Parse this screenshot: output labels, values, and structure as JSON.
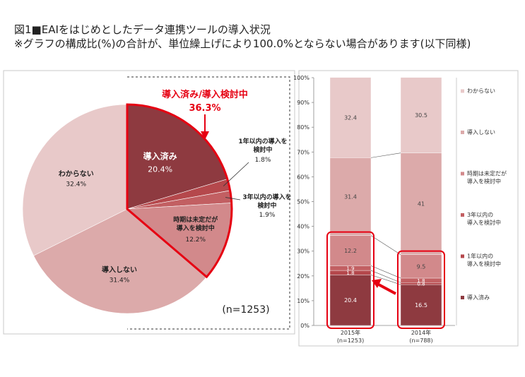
{
  "titles": {
    "line1": "図1■EAIをはじめとしたデータ連携ツールの導入状況",
    "line2": "※グラフの構成比(%)の合計が、単位繰上げにより100.0%とならない場合があります(以下同様)"
  },
  "chart_data": [
    {
      "type": "pie",
      "labels": [
        "導入済み",
        "1年以内の導入を検討中",
        "3年以内の導入を検討中",
        "時期は未定だが導入を検討中",
        "導入しない",
        "わからない"
      ],
      "values": [
        20.4,
        1.8,
        1.9,
        12.2,
        31.4,
        32.4
      ],
      "colors": [
        "#8e3a40",
        "#b5484c",
        "#c25f62",
        "#d2898b",
        "#dcaaaa",
        "#e8c9c9"
      ],
      "highlight": {
        "label": "導入済み/導入検討中",
        "value": "36.3%",
        "color": "#e60012"
      },
      "note": "(n=1253)"
    },
    {
      "type": "bar",
      "stacked": true,
      "categories": [
        "2015年\n(n=1253)",
        "2014年\n(n=788)"
      ],
      "series": [
        {
          "name": "導入済み",
          "values": [
            20.4,
            16.5
          ],
          "color": "#8e3a40"
        },
        {
          "name": "1年以内の\n導入を検討中",
          "values": [
            1.8,
            0.8
          ],
          "color": "#b5484c"
        },
        {
          "name": "3年以内の\n導入を検討中",
          "values": [
            1.9,
            1.8
          ],
          "color": "#c25f62"
        },
        {
          "name": "時期は未定だが\n導入を検討中",
          "values": [
            12.2,
            9.5
          ],
          "color": "#d2898b"
        },
        {
          "name": "導入しない",
          "values": [
            31.4,
            41.0
          ],
          "color": "#dcaaaa"
        },
        {
          "name": "わからない",
          "values": [
            32.4,
            30.5
          ],
          "color": "#e8c9c9"
        }
      ],
      "ylim": [
        0,
        100
      ],
      "yticks": [
        "0%",
        "10%",
        "20%",
        "30%",
        "40%",
        "50%",
        "60%",
        "70%",
        "80%",
        "90%",
        "100%"
      ],
      "legend_position": "right"
    }
  ]
}
